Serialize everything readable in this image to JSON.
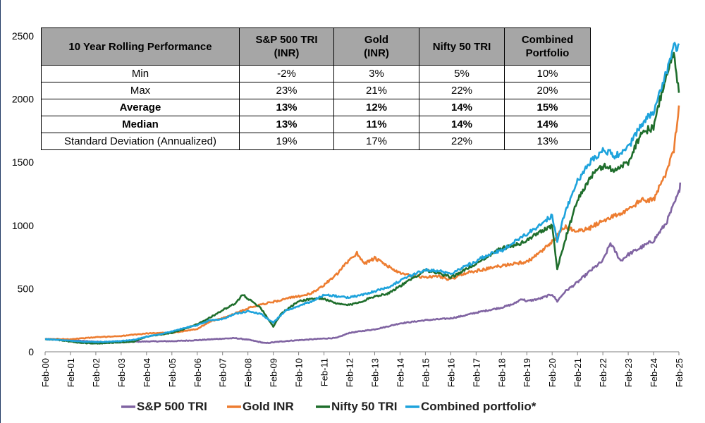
{
  "chart_data": {
    "type": "line",
    "ylim": [
      0,
      2500
    ],
    "yticks": [
      0,
      500,
      1000,
      1500,
      2000,
      2500
    ],
    "x_tick_labels": [
      "Feb-00",
      "Feb-01",
      "Feb-02",
      "Feb-03",
      "Feb-04",
      "Feb-05",
      "Feb-06",
      "Feb-07",
      "Feb-08",
      "Feb-09",
      "Feb-10",
      "Feb-11",
      "Feb-12",
      "Feb-13",
      "Feb-14",
      "Feb-15",
      "Feb-16",
      "Feb-17",
      "Feb-18",
      "Feb-19",
      "Feb-20",
      "Feb-21",
      "Feb-22",
      "Feb-23",
      "Feb-24",
      "Feb-25"
    ],
    "grid": false,
    "legend_position": "bottom",
    "series": [
      {
        "name": "S&P 500 TRI",
        "color": "#8064a2",
        "points": [
          [
            0,
            100
          ],
          [
            0.5,
            98
          ],
          [
            1,
            92
          ],
          [
            1.5,
            85
          ],
          [
            2,
            80
          ],
          [
            2.5,
            74
          ],
          [
            3,
            75
          ],
          [
            3.5,
            80
          ],
          [
            4,
            82
          ],
          [
            5,
            84
          ],
          [
            6,
            92
          ],
          [
            7,
            104
          ],
          [
            7.5,
            108
          ],
          [
            8,
            96
          ],
          [
            8.7,
            68
          ],
          [
            9,
            75
          ],
          [
            9.5,
            85
          ],
          [
            10,
            92
          ],
          [
            11,
            105
          ],
          [
            11.5,
            110
          ],
          [
            12,
            150
          ],
          [
            13,
            178
          ],
          [
            13.5,
            200
          ],
          [
            14,
            225
          ],
          [
            15,
            250
          ],
          [
            16,
            265
          ],
          [
            16.5,
            285
          ],
          [
            17,
            310
          ],
          [
            18,
            350
          ],
          [
            18.5,
            380
          ],
          [
            18.8,
            420
          ],
          [
            19,
            400
          ],
          [
            19.5,
            420
          ],
          [
            20,
            455
          ],
          [
            20.2,
            400
          ],
          [
            20.5,
            475
          ],
          [
            21,
            550
          ],
          [
            21.5,
            640
          ],
          [
            22,
            720
          ],
          [
            22.3,
            860
          ],
          [
            22.7,
            720
          ],
          [
            23,
            770
          ],
          [
            24,
            880
          ],
          [
            24.5,
            1020
          ],
          [
            25,
            1260
          ],
          [
            25.05,
            1340
          ]
        ]
      },
      {
        "name": "Gold INR",
        "color": "#ed7d31",
        "points": [
          [
            0,
            100
          ],
          [
            1,
            100
          ],
          [
            2,
            115
          ],
          [
            3,
            125
          ],
          [
            4,
            145
          ],
          [
            4.5,
            150
          ],
          [
            5,
            150
          ],
          [
            6,
            180
          ],
          [
            6.5,
            240
          ],
          [
            7,
            265
          ],
          [
            7.5,
            305
          ],
          [
            8,
            345
          ],
          [
            8.5,
            375
          ],
          [
            9,
            395
          ],
          [
            9.5,
            420
          ],
          [
            10,
            440
          ],
          [
            10.5,
            460
          ],
          [
            11,
            530
          ],
          [
            11.5,
            610
          ],
          [
            12,
            730
          ],
          [
            12.3,
            780
          ],
          [
            12.6,
            700
          ],
          [
            13,
            740
          ],
          [
            13.5,
            680
          ],
          [
            14,
            620
          ],
          [
            14.5,
            600
          ],
          [
            15,
            590
          ],
          [
            15.5,
            600
          ],
          [
            16,
            570
          ],
          [
            16.5,
            620
          ],
          [
            17,
            640
          ],
          [
            17.5,
            660
          ],
          [
            18,
            680
          ],
          [
            18.5,
            700
          ],
          [
            19,
            710
          ],
          [
            19.5,
            780
          ],
          [
            20,
            870
          ],
          [
            20.5,
            990
          ],
          [
            21,
            950
          ],
          [
            21.5,
            980
          ],
          [
            22,
            1040
          ],
          [
            22.5,
            1080
          ],
          [
            23,
            1120
          ],
          [
            23.5,
            1200
          ],
          [
            24,
            1200
          ],
          [
            24.5,
            1420
          ],
          [
            24.8,
            1600
          ],
          [
            25,
            1950
          ]
        ]
      },
      {
        "name": "Nifty 50 TRI",
        "color": "#1f6e2c",
        "points": [
          [
            0,
            100
          ],
          [
            0.5,
            95
          ],
          [
            1,
            80
          ],
          [
            1.5,
            70
          ],
          [
            2,
            65
          ],
          [
            2.5,
            70
          ],
          [
            3,
            75
          ],
          [
            3.5,
            80
          ],
          [
            4,
            120
          ],
          [
            4.5,
            135
          ],
          [
            5,
            150
          ],
          [
            5.5,
            180
          ],
          [
            6,
            220
          ],
          [
            6.5,
            270
          ],
          [
            7,
            330
          ],
          [
            7.5,
            380
          ],
          [
            7.8,
            455
          ],
          [
            8,
            420
          ],
          [
            8.5,
            350
          ],
          [
            9,
            200
          ],
          [
            9.3,
            300
          ],
          [
            9.5,
            330
          ],
          [
            10,
            400
          ],
          [
            10.5,
            420
          ],
          [
            11,
            420
          ],
          [
            11.5,
            380
          ],
          [
            12,
            370
          ],
          [
            12.5,
            400
          ],
          [
            13,
            440
          ],
          [
            13.5,
            460
          ],
          [
            14,
            520
          ],
          [
            14.5,
            580
          ],
          [
            15,
            650
          ],
          [
            15.5,
            620
          ],
          [
            16,
            590
          ],
          [
            16.5,
            640
          ],
          [
            17,
            700
          ],
          [
            17.5,
            760
          ],
          [
            18,
            820
          ],
          [
            18.5,
            840
          ],
          [
            19,
            880
          ],
          [
            19.5,
            950
          ],
          [
            20,
            1000
          ],
          [
            20.2,
            650
          ],
          [
            20.5,
            880
          ],
          [
            21,
            1200
          ],
          [
            21.5,
            1380
          ],
          [
            22,
            1470
          ],
          [
            22.5,
            1440
          ],
          [
            23,
            1500
          ],
          [
            23.5,
            1730
          ],
          [
            24,
            1780
          ],
          [
            24.5,
            2200
          ],
          [
            24.8,
            2350
          ],
          [
            25,
            2050
          ]
        ]
      },
      {
        "name": "Combined portfolio*",
        "color": "#1ea3dc",
        "points": [
          [
            0,
            100
          ],
          [
            0.5,
            95
          ],
          [
            1,
            88
          ],
          [
            1.5,
            80
          ],
          [
            2,
            78
          ],
          [
            2.5,
            80
          ],
          [
            3,
            85
          ],
          [
            3.5,
            95
          ],
          [
            4,
            120
          ],
          [
            4.5,
            140
          ],
          [
            5,
            160
          ],
          [
            5.5,
            190
          ],
          [
            6,
            210
          ],
          [
            6.5,
            250
          ],
          [
            7,
            260
          ],
          [
            7.5,
            300
          ],
          [
            8,
            320
          ],
          [
            8.5,
            300
          ],
          [
            9,
            230
          ],
          [
            9.5,
            330
          ],
          [
            10,
            360
          ],
          [
            10.5,
            400
          ],
          [
            11,
            450
          ],
          [
            11.5,
            440
          ],
          [
            12,
            430
          ],
          [
            12.5,
            450
          ],
          [
            13,
            480
          ],
          [
            13.5,
            510
          ],
          [
            14,
            560
          ],
          [
            14.5,
            610
          ],
          [
            15,
            650
          ],
          [
            15.5,
            640
          ],
          [
            16,
            620
          ],
          [
            16.5,
            670
          ],
          [
            17,
            720
          ],
          [
            17.5,
            770
          ],
          [
            18,
            800
          ],
          [
            18.5,
            870
          ],
          [
            19,
            930
          ],
          [
            19.5,
            1000
          ],
          [
            20,
            1080
          ],
          [
            20.2,
            870
          ],
          [
            20.5,
            1100
          ],
          [
            21,
            1350
          ],
          [
            21.5,
            1500
          ],
          [
            22,
            1600
          ],
          [
            22.5,
            1550
          ],
          [
            23,
            1620
          ],
          [
            23.5,
            1800
          ],
          [
            24,
            1900
          ],
          [
            24.5,
            2200
          ],
          [
            24.8,
            2400
          ],
          [
            25,
            2440
          ]
        ]
      }
    ]
  },
  "table": {
    "header": [
      "10 Year Rolling Performance",
      "S&P 500 TRI (INR)",
      "Gold (INR)",
      "Nifty 50 TRI",
      "Combined Portfolio"
    ],
    "rows": [
      {
        "label": "Min",
        "values": [
          "-2%",
          "3%",
          "5%",
          "10%"
        ],
        "bold": false
      },
      {
        "label": "Max",
        "values": [
          "23%",
          "21%",
          "22%",
          "20%"
        ],
        "bold": false
      },
      {
        "label": "Average",
        "values": [
          "13%",
          "12%",
          "14%",
          "15%"
        ],
        "bold": true
      },
      {
        "label": "Median",
        "values": [
          "13%",
          "11%",
          "14%",
          "14%"
        ],
        "bold": true
      },
      {
        "label": "Standard Deviation (Annualized)",
        "values": [
          "19%",
          "17%",
          "22%",
          "13%"
        ],
        "bold": false
      }
    ]
  }
}
